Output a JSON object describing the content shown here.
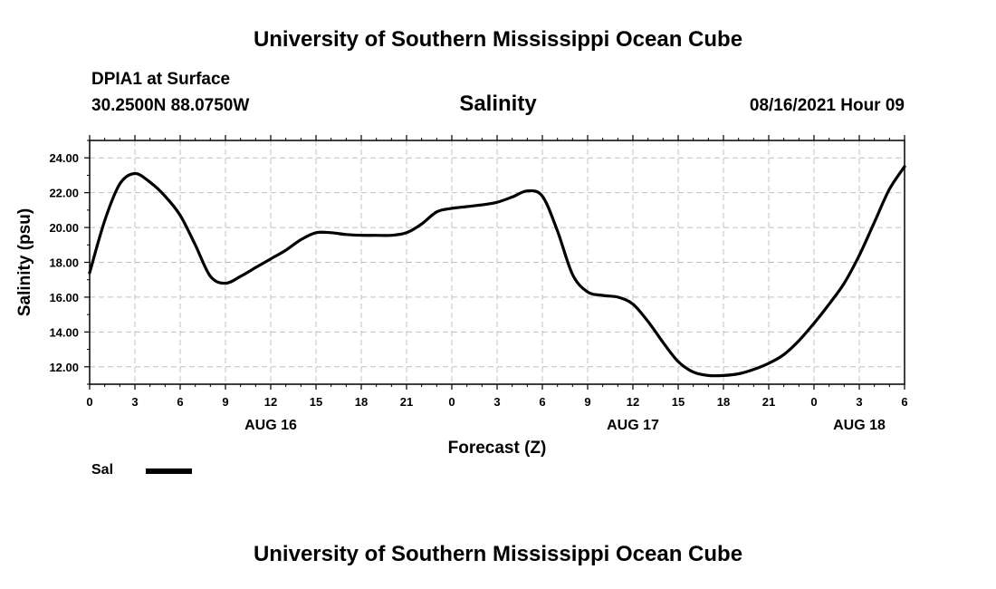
{
  "header": {
    "top_title": "University of Southern Mississippi Ocean Cube",
    "station": "DPIA1 at Surface",
    "coordinates": "30.2500N  88.0750W",
    "chart_title": "Salinity",
    "datetime": "08/16/2021 Hour 09"
  },
  "footer": {
    "bottom_title": "University of Southern Mississippi Ocean Cube"
  },
  "legend": {
    "label": "Sal",
    "color": "#000000"
  },
  "chart_data": {
    "type": "line",
    "title": "Salinity",
    "xlabel": "Forecast (Z)",
    "ylabel": "Salinity (psu)",
    "ylim": [
      11.0,
      25.0
    ],
    "xlim": [
      0,
      54
    ],
    "grid": true,
    "x_ticks": [
      "0",
      "3",
      "6",
      "9",
      "12",
      "15",
      "18",
      "21",
      "0",
      "3",
      "6",
      "9",
      "12",
      "15",
      "18",
      "21",
      "0",
      "3",
      "6"
    ],
    "y_ticks": [
      "12.00",
      "14.00",
      "16.00",
      "18.00",
      "20.00",
      "22.00",
      "24.00"
    ],
    "date_labels": [
      {
        "text": "AUG 16",
        "at_hour": 12
      },
      {
        "text": "AUG 17",
        "at_hour": 36
      },
      {
        "text": "AUG 18",
        "at_hour": 51
      }
    ],
    "series": [
      {
        "name": "Sal",
        "color": "#000000",
        "x": [
          0,
          1,
          2,
          3,
          4,
          5,
          6,
          7,
          8,
          9,
          10,
          11,
          12,
          13,
          14,
          15,
          16,
          17,
          18,
          19,
          20,
          21,
          22,
          23,
          24,
          25,
          26,
          27,
          28,
          29,
          30,
          31,
          32,
          33,
          34,
          35,
          36,
          37,
          38,
          39,
          40,
          41,
          42,
          43,
          44,
          45,
          46,
          47,
          48,
          49,
          50,
          51,
          52,
          53,
          54
        ],
        "values": [
          17.4,
          20.4,
          22.5,
          23.1,
          22.6,
          21.8,
          20.7,
          19.0,
          17.2,
          16.8,
          17.2,
          17.7,
          18.2,
          18.7,
          19.3,
          19.7,
          19.7,
          19.6,
          19.55,
          19.55,
          19.55,
          19.7,
          20.2,
          20.9,
          21.1,
          21.2,
          21.3,
          21.45,
          21.75,
          22.1,
          21.8,
          19.8,
          17.3,
          16.3,
          16.1,
          16.0,
          15.6,
          14.6,
          13.4,
          12.3,
          11.7,
          11.5,
          11.5,
          11.6,
          11.85,
          12.2,
          12.7,
          13.5,
          14.5,
          15.6,
          16.8,
          18.4,
          20.3,
          22.2,
          23.5
        ]
      }
    ]
  }
}
